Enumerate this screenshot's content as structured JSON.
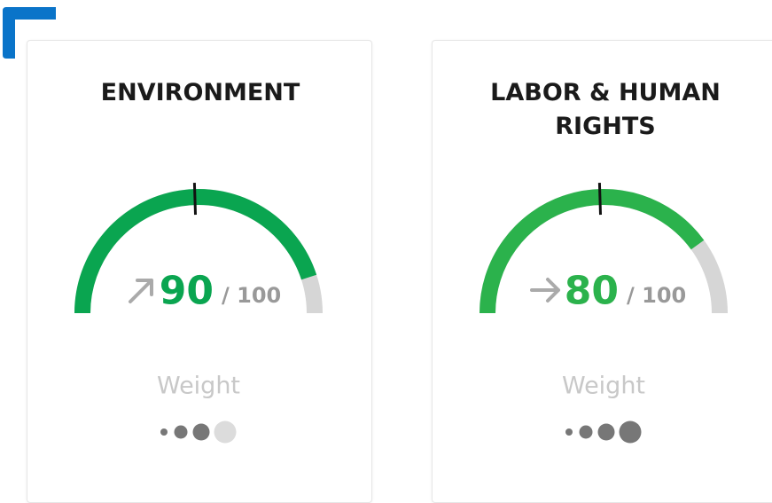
{
  "cards": [
    {
      "title": "ENVIRONMENT",
      "score": 90,
      "max": {
        "value": 100,
        "label": "/ 100"
      },
      "benchmark": 49,
      "trend": "up",
      "color": "#0aa550",
      "weight_label": "Weight",
      "weight": 3,
      "weight_scale": 4
    },
    {
      "title": "LABOR & HUMAN RIGHTS",
      "score": 80,
      "max": {
        "value": 100,
        "label": "/ 100"
      },
      "benchmark": 49,
      "trend": "flat",
      "color": "#2bb24c",
      "weight_label": "Weight",
      "weight": 4,
      "weight_scale": 4
    }
  ]
}
